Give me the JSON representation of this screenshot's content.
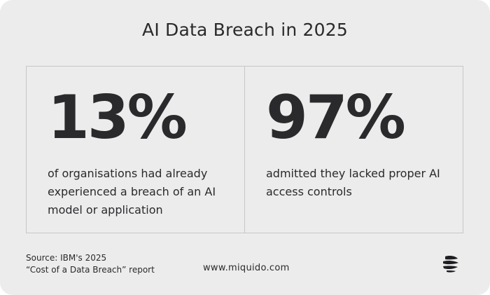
{
  "title": "AI Data Breach in 2025",
  "stats": [
    {
      "value": "13%",
      "description": "of organisations had already experienced a breach of an AI model or application"
    },
    {
      "value": "97%",
      "description": "admitted they lacked proper AI access controls"
    }
  ],
  "footer": {
    "source_line1": "Source: IBM's 2025",
    "source_line2": "“Cost of a Data Breach” report",
    "website": "www.miquido.com",
    "logo_icon": "miquido-logo-icon"
  },
  "colors": {
    "background": "#ececec",
    "text": "#2a2a2d",
    "border": "#c7c7c7"
  }
}
